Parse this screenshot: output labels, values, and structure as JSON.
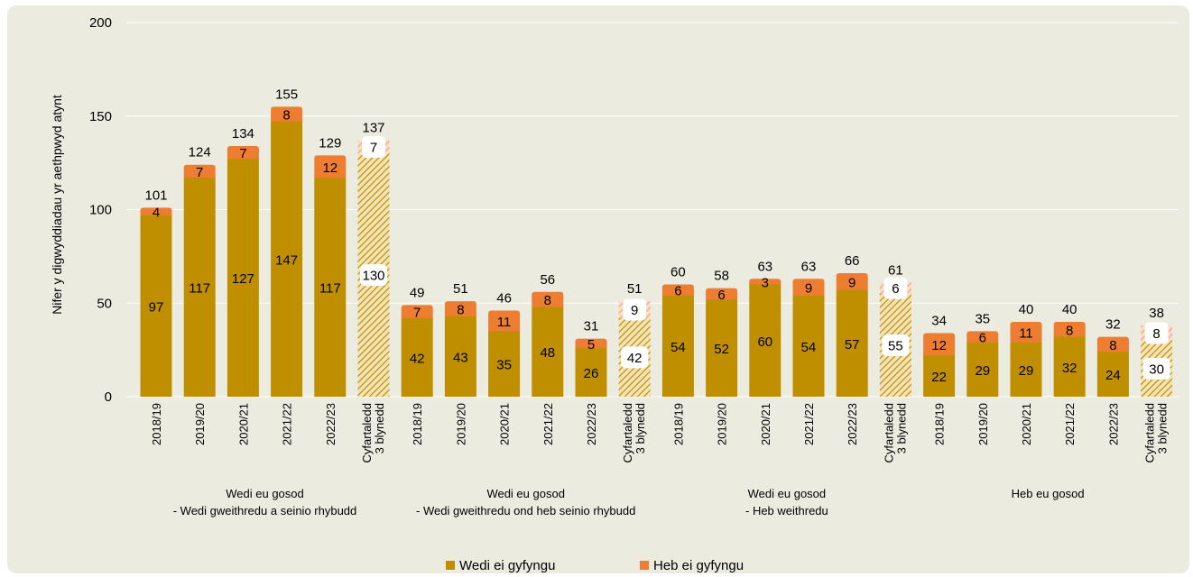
{
  "chart_data": {
    "type": "bar",
    "stacked": true,
    "title": "",
    "ylabel": "Nifer y digwyddiadau yr aethpwyd atynt",
    "ylim": [
      0,
      200
    ],
    "yticks": [
      0,
      50,
      100,
      150,
      200
    ],
    "grid": true,
    "legend_position": "bottom",
    "colors": {
      "contained": "#bf8f00",
      "not_contained": "#ed7d31",
      "background": "#ecebe0",
      "gridline": "#ffffff"
    },
    "series": [
      {
        "key": "contained",
        "name": "Wedi ei gyfyngu"
      },
      {
        "key": "not_contained",
        "name": "Heb ei gyfyngu"
      }
    ],
    "groups": [
      {
        "label_line1": "Wedi eu gosod",
        "label_line2": "- Wedi gweithredu a seinio rhybudd",
        "bars": [
          {
            "category": "2018/19",
            "contained": 97,
            "not_contained": 4,
            "total": 101
          },
          {
            "category": "2019/20",
            "contained": 117,
            "not_contained": 7,
            "total": 124
          },
          {
            "category": "2020/21",
            "contained": 127,
            "not_contained": 7,
            "total": 134
          },
          {
            "category": "2021/22",
            "contained": 147,
            "not_contained": 8,
            "total": 155
          },
          {
            "category": "2022/23",
            "contained": 117,
            "not_contained": 12,
            "total": 129
          },
          {
            "category": "Cyfartaledd 3 blynedd",
            "category_line1": "Cyfartaledd",
            "category_line2": "3 blynedd",
            "average": true,
            "contained": 130,
            "not_contained": 7,
            "total": 137
          }
        ]
      },
      {
        "label_line1": "Wedi eu gosod",
        "label_line2": "- Wedi gweithredu ond heb seinio rhybudd",
        "bars": [
          {
            "category": "2018/19",
            "contained": 42,
            "not_contained": 7,
            "total": 49
          },
          {
            "category": "2019/20",
            "contained": 43,
            "not_contained": 8,
            "total": 51
          },
          {
            "category": "2020/21",
            "contained": 35,
            "not_contained": 11,
            "total": 46
          },
          {
            "category": "2021/22",
            "contained": 48,
            "not_contained": 8,
            "total": 56
          },
          {
            "category": "2022/23",
            "contained": 26,
            "not_contained": 5,
            "total": 31
          },
          {
            "category": "Cyfartaledd 3 blynedd",
            "category_line1": "Cyfartaledd",
            "category_line2": "3 blynedd",
            "average": true,
            "contained": 42,
            "not_contained": 9,
            "total": 51
          }
        ]
      },
      {
        "label_line1": "Wedi eu gosod",
        "label_line2": "- Heb weithredu",
        "bars": [
          {
            "category": "2018/19",
            "contained": 54,
            "not_contained": 6,
            "total": 60
          },
          {
            "category": "2019/20",
            "contained": 52,
            "not_contained": 6,
            "total": 58
          },
          {
            "category": "2020/21",
            "contained": 60,
            "not_contained": 3,
            "total": 63
          },
          {
            "category": "2021/22",
            "contained": 54,
            "not_contained": 9,
            "total": 63
          },
          {
            "category": "2022/23",
            "contained": 57,
            "not_contained": 9,
            "total": 66
          },
          {
            "category": "Cyfartaledd 3 blynedd",
            "category_line1": "Cyfartaledd",
            "category_line2": "3 blynedd",
            "average": true,
            "contained": 55,
            "not_contained": 6,
            "total": 61
          }
        ]
      },
      {
        "label_line1": "Heb eu gosod",
        "label_line2": "",
        "bars": [
          {
            "category": "2018/19",
            "contained": 22,
            "not_contained": 12,
            "total": 34
          },
          {
            "category": "2019/20",
            "contained": 29,
            "not_contained": 6,
            "total": 35
          },
          {
            "category": "2020/21",
            "contained": 29,
            "not_contained": 11,
            "total": 40
          },
          {
            "category": "2021/22",
            "contained": 32,
            "not_contained": 8,
            "total": 40
          },
          {
            "category": "2022/23",
            "contained": 24,
            "not_contained": 8,
            "total": 32
          },
          {
            "category": "Cyfartaledd 3 blynedd",
            "category_line1": "Cyfartaledd",
            "category_line2": "3 blynedd",
            "average": true,
            "contained": 30,
            "not_contained": 8,
            "total": 38
          }
        ]
      }
    ]
  }
}
